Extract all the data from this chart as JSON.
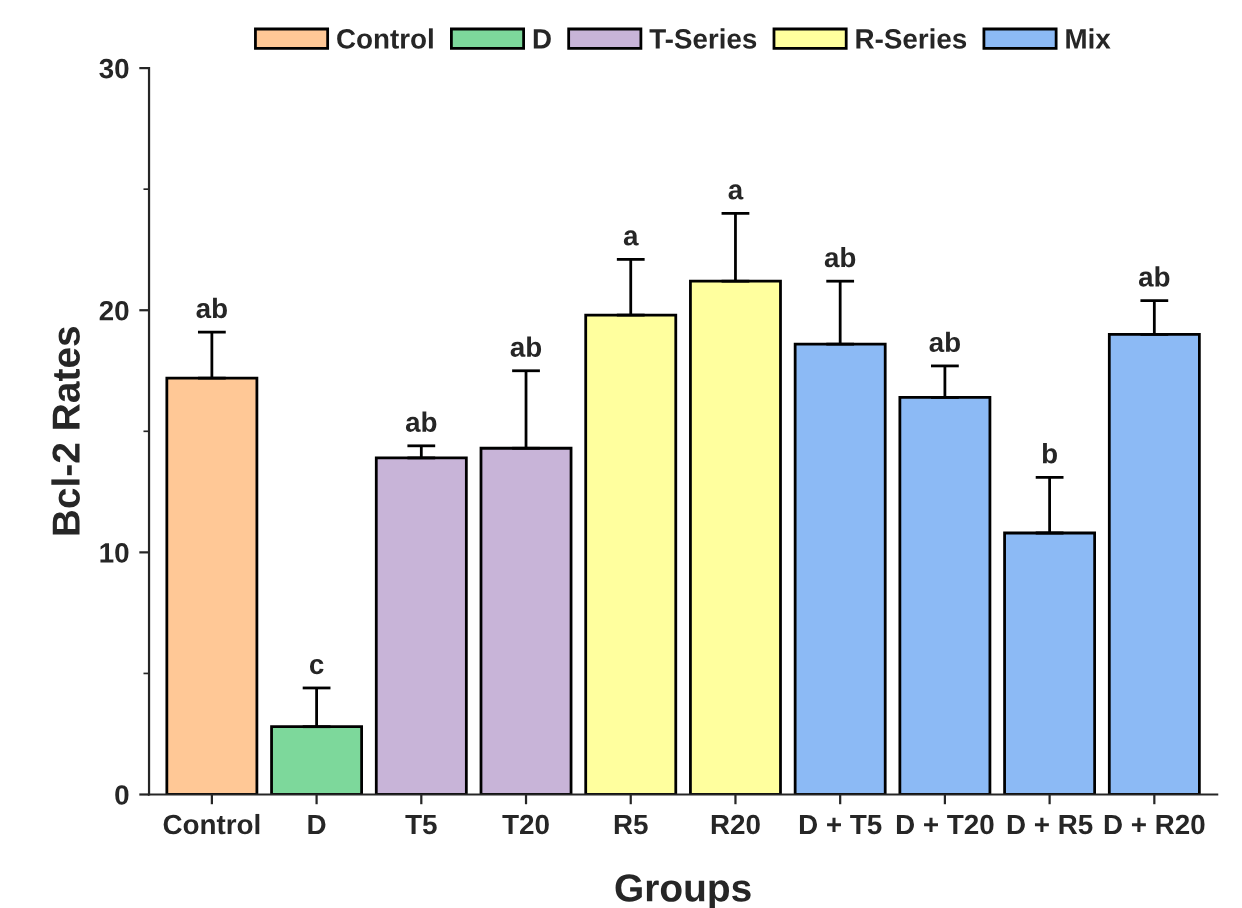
{
  "chart_data": {
    "type": "bar",
    "xlabel": "Groups",
    "ylabel": "Bcl-2 Rates",
    "categories": [
      "Control",
      "D",
      "T5",
      "T20",
      "R5",
      "R20",
      "D + T5",
      "D + T20",
      "D + R5",
      "D + R20"
    ],
    "series": [
      {
        "name": "Control",
        "color": "#ffc896",
        "values": [
          17.2,
          null,
          null,
          null,
          null,
          null,
          null,
          null,
          null,
          null
        ],
        "errors": [
          [
            17.2,
            19.1
          ],
          null,
          null,
          null,
          null,
          null,
          null,
          null,
          null,
          null
        ]
      },
      {
        "name": "D",
        "color": "#7dd89b",
        "values": [
          null,
          2.8,
          null,
          null,
          null,
          null,
          null,
          null,
          null,
          null
        ],
        "errors": [
          null,
          [
            2.8,
            4.4
          ],
          null,
          null,
          null,
          null,
          null,
          null,
          null,
          null
        ]
      },
      {
        "name": "T-Series",
        "color": "#c8b4d8",
        "values": [
          null,
          null,
          13.9,
          14.3,
          null,
          null,
          null,
          null,
          null,
          null
        ],
        "errors": [
          null,
          null,
          [
            13.9,
            14.4
          ],
          [
            14.3,
            17.5
          ],
          null,
          null,
          null,
          null,
          null,
          null
        ]
      },
      {
        "name": "R-Series",
        "color": "#ffff9e",
        "values": [
          null,
          null,
          null,
          null,
          19.8,
          21.2,
          null,
          null,
          null,
          null
        ],
        "errors": [
          null,
          null,
          null,
          null,
          [
            19.8,
            22.1
          ],
          [
            21.2,
            24.0
          ],
          null,
          null,
          null,
          null
        ]
      },
      {
        "name": "Mix",
        "color": "#8cbaf5",
        "values": [
          null,
          null,
          null,
          null,
          null,
          null,
          18.6,
          16.4,
          10.8,
          19.0
        ],
        "errors": [
          null,
          null,
          null,
          null,
          null,
          null,
          [
            18.6,
            21.2
          ],
          [
            16.4,
            17.7
          ],
          [
            10.8,
            13.1
          ],
          [
            19.0,
            20.4
          ]
        ]
      }
    ],
    "ylim": [
      0,
      30
    ],
    "yticks": [
      0,
      10,
      20,
      30
    ],
    "grid": false,
    "legend": "top",
    "annotations": [
      "ab",
      "c",
      "ab",
      "ab",
      "a",
      "a",
      "ab",
      "ab",
      "b",
      "ab"
    ]
  }
}
